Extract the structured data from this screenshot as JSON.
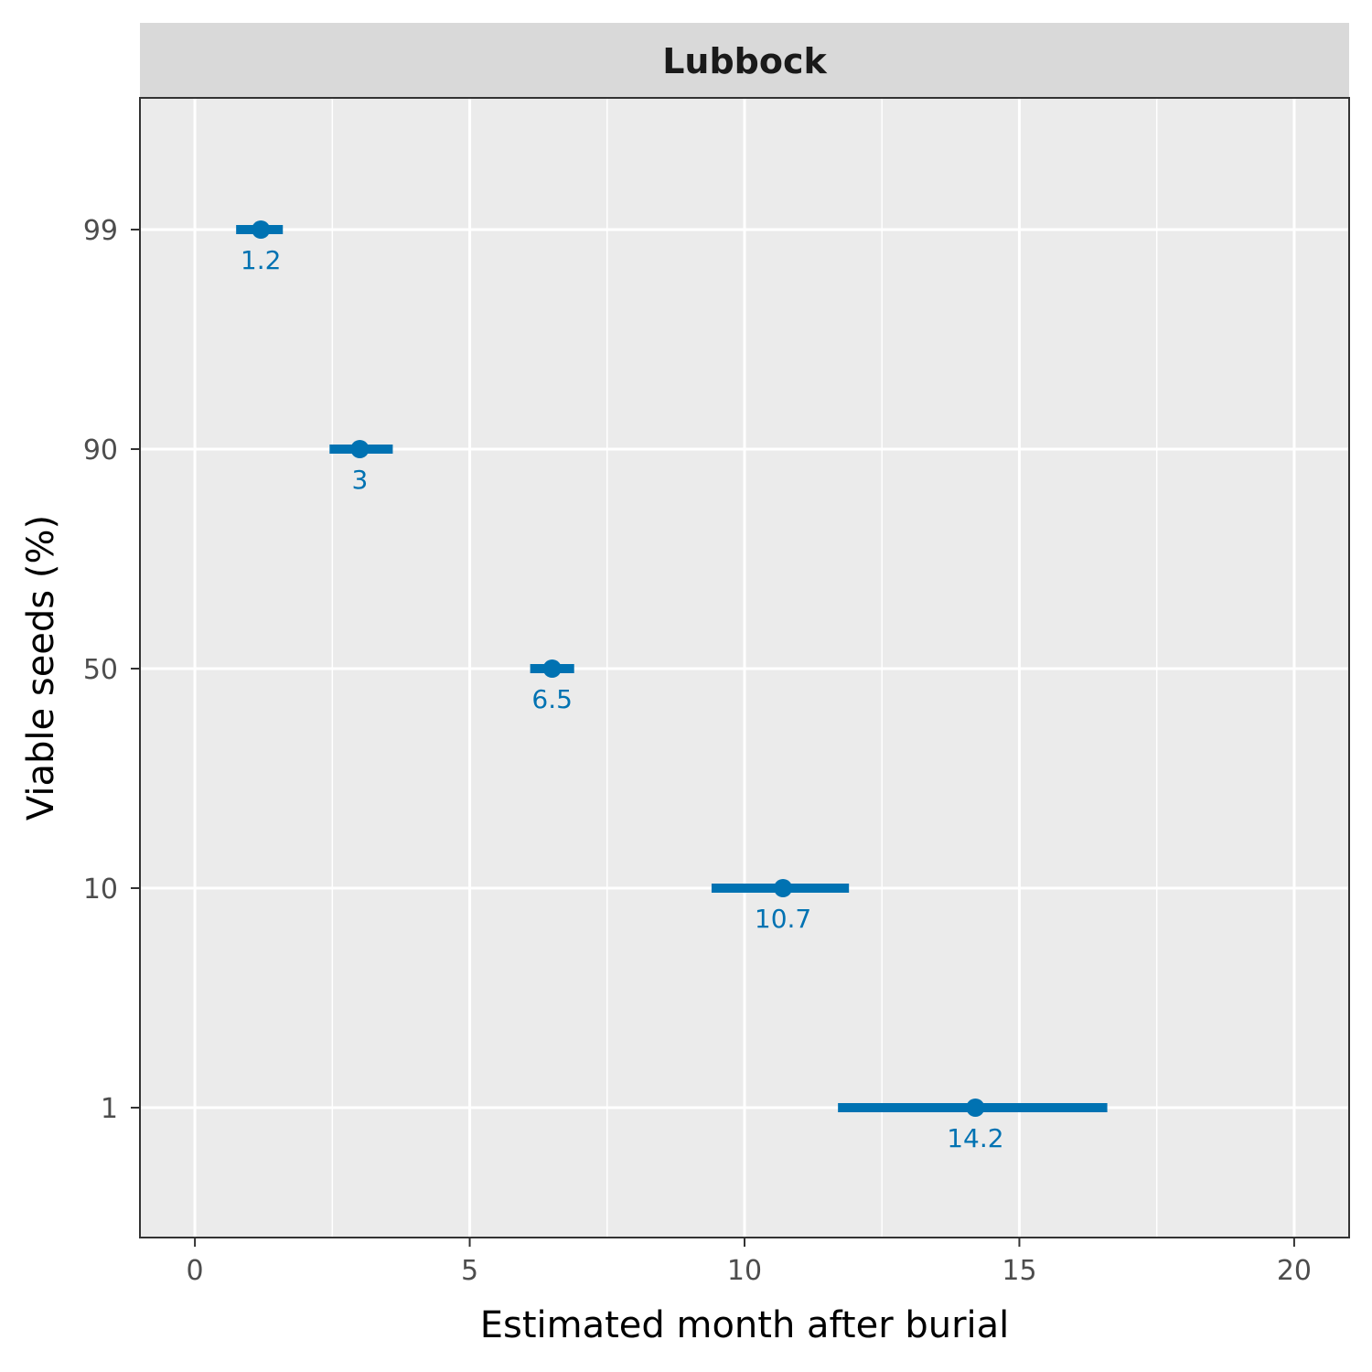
{
  "chart_data": {
    "type": "scatter",
    "facet_label": "Lubbock",
    "xlabel": "Estimated month after burial",
    "ylabel": "Viable seeds (%)",
    "xlim": [
      -1,
      21
    ],
    "x_ticks": [
      0,
      5,
      10,
      15,
      20
    ],
    "x_minor_ticks": [
      2.5,
      7.5,
      12.5,
      17.5
    ],
    "y_categories": [
      "99",
      "90",
      "50",
      "10",
      "1"
    ],
    "grid": true,
    "color": "#0072B2",
    "points": [
      {
        "y": "99",
        "x": 1.2,
        "lower": 0.75,
        "upper": 1.6,
        "label": "1.2"
      },
      {
        "y": "90",
        "x": 3.0,
        "lower": 2.45,
        "upper": 3.6,
        "label": "3"
      },
      {
        "y": "50",
        "x": 6.5,
        "lower": 6.1,
        "upper": 6.9,
        "label": "6.5"
      },
      {
        "y": "10",
        "x": 10.7,
        "lower": 9.4,
        "upper": 11.9,
        "label": "10.7"
      },
      {
        "y": "1",
        "x": 14.2,
        "lower": 11.7,
        "upper": 16.6,
        "label": "14.2"
      }
    ]
  }
}
